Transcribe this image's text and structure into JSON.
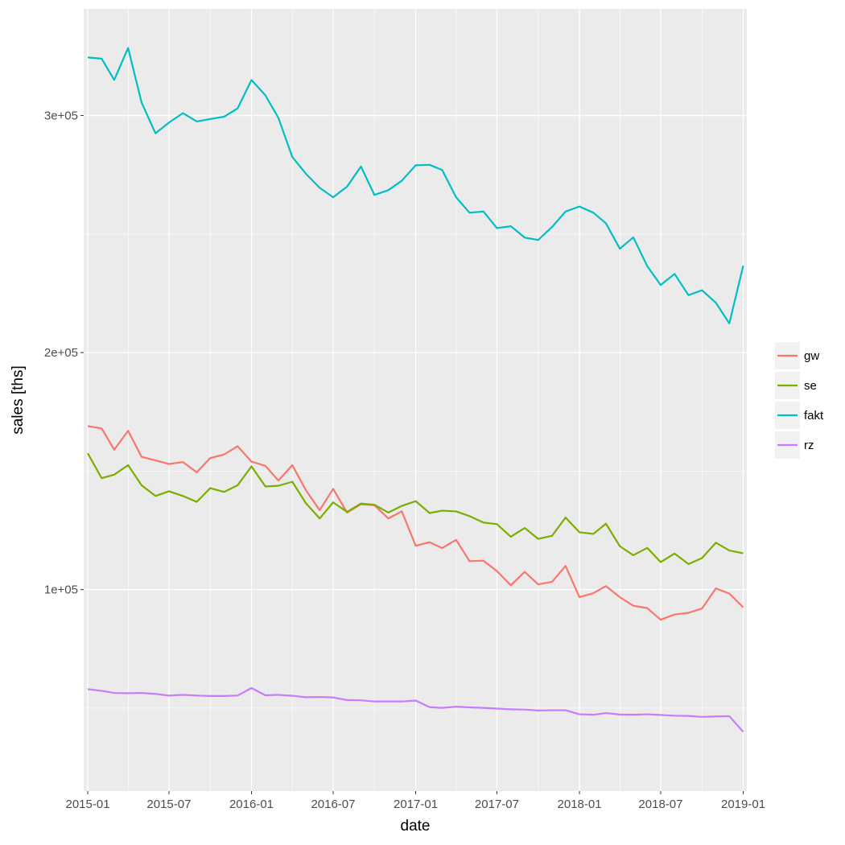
{
  "chart_data": {
    "type": "line",
    "xlabel": "date",
    "ylabel": "sales [ths]",
    "x_ticks": [
      "2015-01",
      "2015-07",
      "2016-01",
      "2016-07",
      "2017-01",
      "2017-07",
      "2018-01",
      "2018-07",
      "2019-01"
    ],
    "y_ticks": [
      {
        "value": 100000,
        "label": "1e+05"
      },
      {
        "value": 200000,
        "label": "2e+05"
      },
      {
        "value": 300000,
        "label": "3e+05"
      }
    ],
    "ylim": [
      15000,
      345000
    ],
    "xlim": [
      "2014-12-23",
      "2019-01-09"
    ],
    "grid": true,
    "legend_position": "right",
    "x": [
      "2015-01",
      "2015-02",
      "2015-03",
      "2015-04",
      "2015-05",
      "2015-06",
      "2015-07",
      "2015-08",
      "2015-09",
      "2015-10",
      "2015-11",
      "2015-12",
      "2016-01",
      "2016-02",
      "2016-03",
      "2016-04",
      "2016-05",
      "2016-06",
      "2016-07",
      "2016-08",
      "2016-09",
      "2016-10",
      "2016-11",
      "2016-12",
      "2017-01",
      "2017-02",
      "2017-03",
      "2017-04",
      "2017-05",
      "2017-06",
      "2017-07",
      "2017-08",
      "2017-09",
      "2017-10",
      "2017-11",
      "2017-12",
      "2018-01",
      "2018-02",
      "2018-03",
      "2018-04",
      "2018-05",
      "2018-06",
      "2018-07",
      "2018-08",
      "2018-09",
      "2018-10",
      "2018-11",
      "2018-12",
      "2019-01"
    ],
    "series": [
      {
        "name": "gw",
        "color": "#F8766D",
        "values": [
          169000,
          168000,
          159000,
          167000,
          156000,
          154500,
          153000,
          153800,
          149500,
          155500,
          157000,
          160500,
          154000,
          152200,
          146000,
          152500,
          142000,
          133500,
          142500,
          132500,
          136000,
          135600,
          130000,
          133000,
          118500,
          120000,
          117500,
          121000,
          112000,
          112200,
          107800,
          101800,
          107500,
          102200,
          103300,
          110000,
          96800,
          98500,
          101500,
          96800,
          93200,
          92200,
          87300,
          89500,
          90200,
          92000,
          100500,
          98300,
          92500
        ]
      },
      {
        "name": "se",
        "color": "#7CAE00",
        "values": [
          157500,
          147000,
          148500,
          152500,
          144000,
          139500,
          141500,
          139500,
          137000,
          142800,
          141200,
          144000,
          152000,
          143500,
          143800,
          145500,
          136500,
          130000,
          136800,
          132800,
          136300,
          135800,
          132500,
          135300,
          137300,
          132300,
          133300,
          133000,
          131000,
          128300,
          127600,
          122300,
          126000,
          121400,
          122700,
          130400,
          124200,
          123500,
          127800,
          118300,
          114500,
          117600,
          111600,
          115200,
          110800,
          113300,
          119800,
          116500,
          115300
        ]
      },
      {
        "name": "fakt",
        "color": "#00BFC4",
        "values": [
          324500,
          324000,
          315000,
          328500,
          305500,
          292500,
          297000,
          301000,
          297500,
          298500,
          299500,
          303000,
          315000,
          308500,
          299000,
          282500,
          275500,
          269500,
          265500,
          270000,
          278500,
          266500,
          268500,
          272500,
          279000,
          279200,
          277000,
          265500,
          259000,
          259500,
          252500,
          253300,
          248500,
          247500,
          253000,
          259500,
          261600,
          259000,
          254500,
          243800,
          248600,
          236500,
          228500,
          233200,
          224200,
          226300,
          221000,
          212300,
          236600
        ]
      },
      {
        "name": "rz",
        "color": "#C77CFF",
        "values": [
          58000,
          57300,
          56400,
          56300,
          56400,
          56000,
          55300,
          55600,
          55300,
          55100,
          55100,
          55300,
          58500,
          55400,
          55600,
          55200,
          54600,
          54700,
          54500,
          53400,
          53300,
          52800,
          52800,
          52800,
          53200,
          50400,
          50100,
          50600,
          50300,
          50100,
          49800,
          49500,
          49400,
          49000,
          49100,
          49100,
          47400,
          47200,
          47900,
          47300,
          47200,
          47400,
          47100,
          46800,
          46700,
          46300,
          46500,
          46600,
          40000
        ]
      }
    ]
  }
}
